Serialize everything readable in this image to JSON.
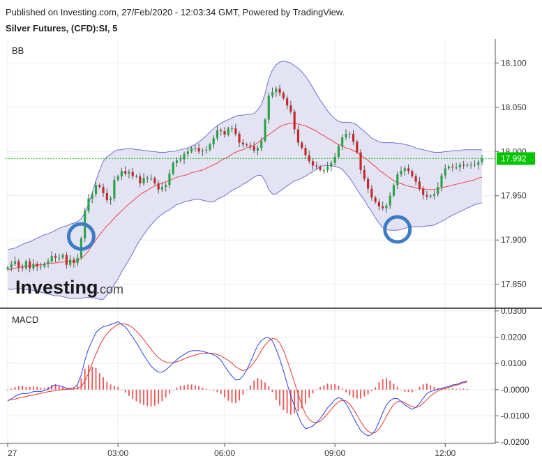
{
  "header": {
    "published": "Published on Investing.com, 27/Feb/2020 - 12:03:34 GMT, Powered by TradingView.",
    "symbol": "Silver Futures, (CFD):SI, 5"
  },
  "logo": {
    "text_main": "Investing",
    "text_suffix": ".com"
  },
  "colors": {
    "up": "#26a544",
    "down": "#c62828",
    "band": "#6f6fd8",
    "bandFill": "#e3e3f3",
    "basis": "#ee4444",
    "macd": "#2b3fe6",
    "signal": "#ee3333",
    "hist": "#ee5555",
    "last": "#00c400",
    "circle": "#3c7dc4"
  },
  "chart_data": [
    {
      "type": "candlestick",
      "panel_label": "BB",
      "yaxis": {
        "ticks": [
          "18.100",
          "18.050",
          "18.000",
          "17.950",
          "17.900",
          "17.850"
        ],
        "ylim": [
          17.823,
          18.127
        ]
      },
      "xaxis": {
        "ticks": [
          "27",
          "03:00",
          "06:00",
          "09:00",
          "12:00"
        ],
        "tick_index": [
          0,
          30,
          59,
          89,
          119
        ]
      },
      "last_price": "17.992",
      "close": [
        17.869,
        17.873,
        17.876,
        17.869,
        17.868,
        17.876,
        17.868,
        17.873,
        17.87,
        17.87,
        17.873,
        17.876,
        17.882,
        17.88,
        17.88,
        17.883,
        17.872,
        17.878,
        17.874,
        17.88,
        17.902,
        17.933,
        17.947,
        17.952,
        17.962,
        17.96,
        17.953,
        17.945,
        17.947,
        17.968,
        17.972,
        17.978,
        17.975,
        17.977,
        17.972,
        17.972,
        17.964,
        17.97,
        17.97,
        17.97,
        17.964,
        17.957,
        17.96,
        17.962,
        17.975,
        17.987,
        17.99,
        17.991,
        17.997,
        18.0,
        18.004,
        18.004,
        18.0,
        18.001,
        18.002,
        18.008,
        18.015,
        18.024,
        18.023,
        18.019,
        18.026,
        18.026,
        18.02,
        18.01,
        18.008,
        18.007,
        18.006,
        18.001,
        18.004,
        18.012,
        18.036,
        18.063,
        18.067,
        18.071,
        18.066,
        18.06,
        18.052,
        18.045,
        18.025,
        18.01,
        18.004,
        17.996,
        17.989,
        17.984,
        17.983,
        17.979,
        17.979,
        17.983,
        17.987,
        17.994,
        18.006,
        18.016,
        18.02,
        18.02,
        18.011,
        17.999,
        17.979,
        17.969,
        17.958,
        17.948,
        17.943,
        17.938,
        17.936,
        17.939,
        17.95,
        17.962,
        17.974,
        17.978,
        17.981,
        17.978,
        17.972,
        17.966,
        17.958,
        17.951,
        17.949,
        17.95,
        17.952,
        17.96,
        17.973,
        17.981,
        17.983,
        17.982,
        17.982,
        17.985,
        17.984,
        17.985,
        17.985,
        17.985,
        17.988,
        17.992
      ],
      "bb_upper": [
        17.889,
        17.89,
        17.891,
        17.893,
        17.895,
        17.897,
        17.898,
        17.9,
        17.902,
        17.904,
        17.906,
        17.907,
        17.909,
        17.911,
        17.913,
        17.915,
        17.916,
        17.918,
        17.919,
        17.921,
        17.924,
        17.931,
        17.941,
        17.953,
        17.967,
        17.979,
        17.989,
        17.994,
        17.997,
        18.0,
        18.002,
        18.002,
        18.003,
        18.003,
        18.003,
        18.002,
        18.002,
        18.001,
        18.001,
        18.0,
        18.0,
        17.999,
        17.999,
        17.999,
        18.0,
        18.0,
        18.001,
        18.002,
        18.003,
        18.004,
        18.006,
        18.008,
        18.011,
        18.014,
        18.018,
        18.022,
        18.026,
        18.029,
        18.032,
        18.034,
        18.036,
        18.038,
        18.04,
        18.041,
        18.041,
        18.042,
        18.042,
        18.043,
        18.047,
        18.053,
        18.065,
        18.082,
        18.092,
        18.098,
        18.101,
        18.102,
        18.101,
        18.1,
        18.097,
        18.094,
        18.09,
        18.085,
        18.079,
        18.072,
        18.065,
        18.058,
        18.052,
        18.046,
        18.041,
        18.037,
        18.034,
        18.033,
        18.033,
        18.033,
        18.032,
        18.03,
        18.026,
        18.023,
        18.019,
        18.015,
        18.013,
        18.011,
        18.01,
        18.01,
        18.01,
        18.01,
        18.009,
        18.009,
        18.008,
        18.007,
        18.006,
        18.004,
        18.003,
        18.002,
        18.001,
        18.0,
        17.999,
        17.999,
        17.999,
        18.0,
        18.0,
        18.001,
        18.001,
        18.001,
        18.002,
        18.002,
        18.002,
        18.002,
        18.002,
        18.002
      ],
      "bb_basis": [
        17.867,
        17.867,
        17.868,
        17.869,
        17.87,
        17.87,
        17.871,
        17.871,
        17.872,
        17.872,
        17.873,
        17.873,
        17.874,
        17.874,
        17.875,
        17.875,
        17.876,
        17.876,
        17.876,
        17.877,
        17.879,
        17.883,
        17.888,
        17.894,
        17.9,
        17.906,
        17.911,
        17.916,
        17.92,
        17.925,
        17.929,
        17.933,
        17.937,
        17.941,
        17.944,
        17.948,
        17.951,
        17.954,
        17.956,
        17.959,
        17.961,
        17.963,
        17.964,
        17.966,
        17.967,
        17.969,
        17.971,
        17.972,
        17.973,
        17.974,
        17.976,
        17.977,
        17.978,
        17.979,
        17.981,
        17.983,
        17.985,
        17.987,
        17.99,
        17.992,
        17.994,
        17.997,
        17.999,
        18.001,
        18.002,
        18.004,
        18.005,
        18.007,
        18.01,
        18.013,
        18.016,
        18.019,
        18.022,
        18.025,
        18.028,
        18.03,
        18.031,
        18.032,
        18.032,
        18.031,
        18.03,
        18.029,
        18.027,
        18.025,
        18.023,
        18.02,
        18.018,
        18.015,
        18.013,
        18.01,
        18.008,
        18.006,
        18.004,
        18.003,
        18.001,
        17.999,
        17.996,
        17.993,
        17.99,
        17.986,
        17.983,
        17.979,
        17.976,
        17.973,
        17.97,
        17.967,
        17.965,
        17.964,
        17.962,
        17.961,
        17.96,
        17.959,
        17.958,
        17.958,
        17.957,
        17.957,
        17.957,
        17.958,
        17.959,
        17.96,
        17.961,
        17.962,
        17.963,
        17.964,
        17.965,
        17.966,
        17.967,
        17.968,
        17.97,
        17.971
      ],
      "bb_lower": [
        17.845,
        17.844,
        17.845,
        17.845,
        17.845,
        17.844,
        17.844,
        17.843,
        17.842,
        17.841,
        17.84,
        17.839,
        17.838,
        17.837,
        17.837,
        17.836,
        17.835,
        17.834,
        17.834,
        17.834,
        17.834,
        17.835,
        17.835,
        17.835,
        17.834,
        17.833,
        17.833,
        17.838,
        17.843,
        17.85,
        17.856,
        17.864,
        17.871,
        17.878,
        17.885,
        17.893,
        17.9,
        17.906,
        17.912,
        17.917,
        17.922,
        17.926,
        17.929,
        17.932,
        17.934,
        17.937,
        17.94,
        17.941,
        17.943,
        17.944,
        17.945,
        17.946,
        17.946,
        17.945,
        17.944,
        17.943,
        17.943,
        17.946,
        17.948,
        17.95,
        17.953,
        17.956,
        17.958,
        17.96,
        17.963,
        17.965,
        17.968,
        17.971,
        17.973,
        17.973,
        17.967,
        17.957,
        17.952,
        17.952,
        17.955,
        17.958,
        17.961,
        17.964,
        17.967,
        17.968,
        17.97,
        17.972,
        17.975,
        17.977,
        17.98,
        17.983,
        17.984,
        17.984,
        17.984,
        17.983,
        17.982,
        17.98,
        17.975,
        17.97,
        17.964,
        17.957,
        17.951,
        17.945,
        17.938,
        17.932,
        17.925,
        17.919,
        17.914,
        17.912,
        17.911,
        17.911,
        17.911,
        17.912,
        17.913,
        17.915,
        17.915,
        17.915,
        17.915,
        17.915,
        17.916,
        17.916,
        17.917,
        17.919,
        17.921,
        17.923,
        17.926,
        17.928,
        17.93,
        17.932,
        17.934,
        17.936,
        17.938,
        17.94,
        17.941,
        17.942
      ],
      "annotations": [
        {
          "label": "circle",
          "x_index": 20,
          "y": 17.904
        },
        {
          "label": "circle",
          "x_index": 106,
          "y": 17.912
        }
      ]
    },
    {
      "type": "macd",
      "panel_label": "MACD",
      "yaxis": {
        "ticks": [
          "0.0300",
          "0.0200",
          "0.0100",
          "-0.0000",
          "-0.0100",
          "-0.0200"
        ],
        "ylim": [
          -0.0205,
          0.0305
        ]
      },
      "macd": [
        -0.0043,
        -0.0035,
        -0.0026,
        -0.0019,
        -0.0014,
        -0.0016,
        -0.0012,
        -0.0008,
        -0.0006,
        -0.0007,
        -0.0004,
        0.0002,
        0.0012,
        0.0018,
        0.0015,
        0.0011,
        0.0006,
        0.0004,
        0.0008,
        0.002,
        0.0056,
        0.0112,
        0.0157,
        0.0187,
        0.0217,
        0.0231,
        0.024,
        0.0243,
        0.0248,
        0.0253,
        0.0259,
        0.0249,
        0.0239,
        0.0221,
        0.02,
        0.0179,
        0.0156,
        0.0132,
        0.011,
        0.009,
        0.0076,
        0.0067,
        0.0067,
        0.0075,
        0.0087,
        0.0101,
        0.0114,
        0.0126,
        0.0134,
        0.0143,
        0.0148,
        0.0149,
        0.0149,
        0.0146,
        0.0142,
        0.0138,
        0.0133,
        0.0125,
        0.0112,
        0.009,
        0.0069,
        0.0051,
        0.0037,
        0.0038,
        0.0052,
        0.0075,
        0.0104,
        0.0138,
        0.0168,
        0.0187,
        0.0197,
        0.0199,
        0.0186,
        0.0154,
        0.0117,
        0.0072,
        0.0023,
        -0.0024,
        -0.0063,
        -0.01,
        -0.013,
        -0.0149,
        -0.0145,
        -0.0138,
        -0.0125,
        -0.011,
        -0.0091,
        -0.0069,
        -0.0055,
        -0.0038,
        -0.003,
        -0.0036,
        -0.0053,
        -0.0077,
        -0.0105,
        -0.0131,
        -0.0155,
        -0.0168,
        -0.0176,
        -0.0171,
        -0.0154,
        -0.0122,
        -0.0088,
        -0.0058,
        -0.0042,
        -0.0033,
        -0.0034,
        -0.0045,
        -0.0058,
        -0.0067,
        -0.0075,
        -0.0068,
        -0.0053,
        -0.0032,
        -0.0015,
        -0.0007,
        -0.0002,
        0.0001,
        0.0005,
        0.0009,
        0.0012,
        0.0018,
        0.002,
        0.0025,
        0.003,
        0.0033
      ],
      "signal": [
        -0.004,
        -0.0039,
        -0.0036,
        -0.0032,
        -0.0029,
        -0.0026,
        -0.0023,
        -0.002,
        -0.0017,
        -0.0014,
        -0.0011,
        -0.0008,
        -0.0006,
        -0.0003,
        -0.0001,
        0.0,
        0.0001,
        0.0002,
        0.0003,
        0.0005,
        0.0012,
        0.0032,
        0.0063,
        0.01,
        0.0135,
        0.0168,
        0.0193,
        0.0213,
        0.0228,
        0.0239,
        0.0249,
        0.0251,
        0.025,
        0.0245,
        0.0236,
        0.0223,
        0.0208,
        0.0191,
        0.0172,
        0.0154,
        0.0137,
        0.0122,
        0.0111,
        0.0105,
        0.0102,
        0.0103,
        0.0106,
        0.0111,
        0.0117,
        0.0123,
        0.0128,
        0.0132,
        0.0136,
        0.0138,
        0.0139,
        0.0139,
        0.0137,
        0.0134,
        0.0129,
        0.012,
        0.0111,
        0.0101,
        0.0087,
        0.0079,
        0.0072,
        0.0077,
        0.0087,
        0.0103,
        0.0124,
        0.0149,
        0.017,
        0.0186,
        0.0195,
        0.0193,
        0.0178,
        0.015,
        0.0113,
        0.0071,
        0.0027,
        -0.0017,
        -0.0058,
        -0.0094,
        -0.0114,
        -0.0124,
        -0.0126,
        -0.012,
        -0.0108,
        -0.0092,
        -0.0075,
        -0.0059,
        -0.0046,
        -0.004,
        -0.0043,
        -0.0055,
        -0.0074,
        -0.0097,
        -0.0121,
        -0.0142,
        -0.0158,
        -0.0166,
        -0.0163,
        -0.015,
        -0.0128,
        -0.0102,
        -0.0077,
        -0.0056,
        -0.0045,
        -0.0044,
        -0.005,
        -0.0058,
        -0.0065,
        -0.0068,
        -0.0064,
        -0.0052,
        -0.0038,
        -0.0024,
        -0.0013,
        -0.0005,
        0.0001,
        0.0005,
        0.0009,
        0.0013,
        0.0017,
        0.0021,
        0.0026,
        0.003
      ]
    }
  ]
}
